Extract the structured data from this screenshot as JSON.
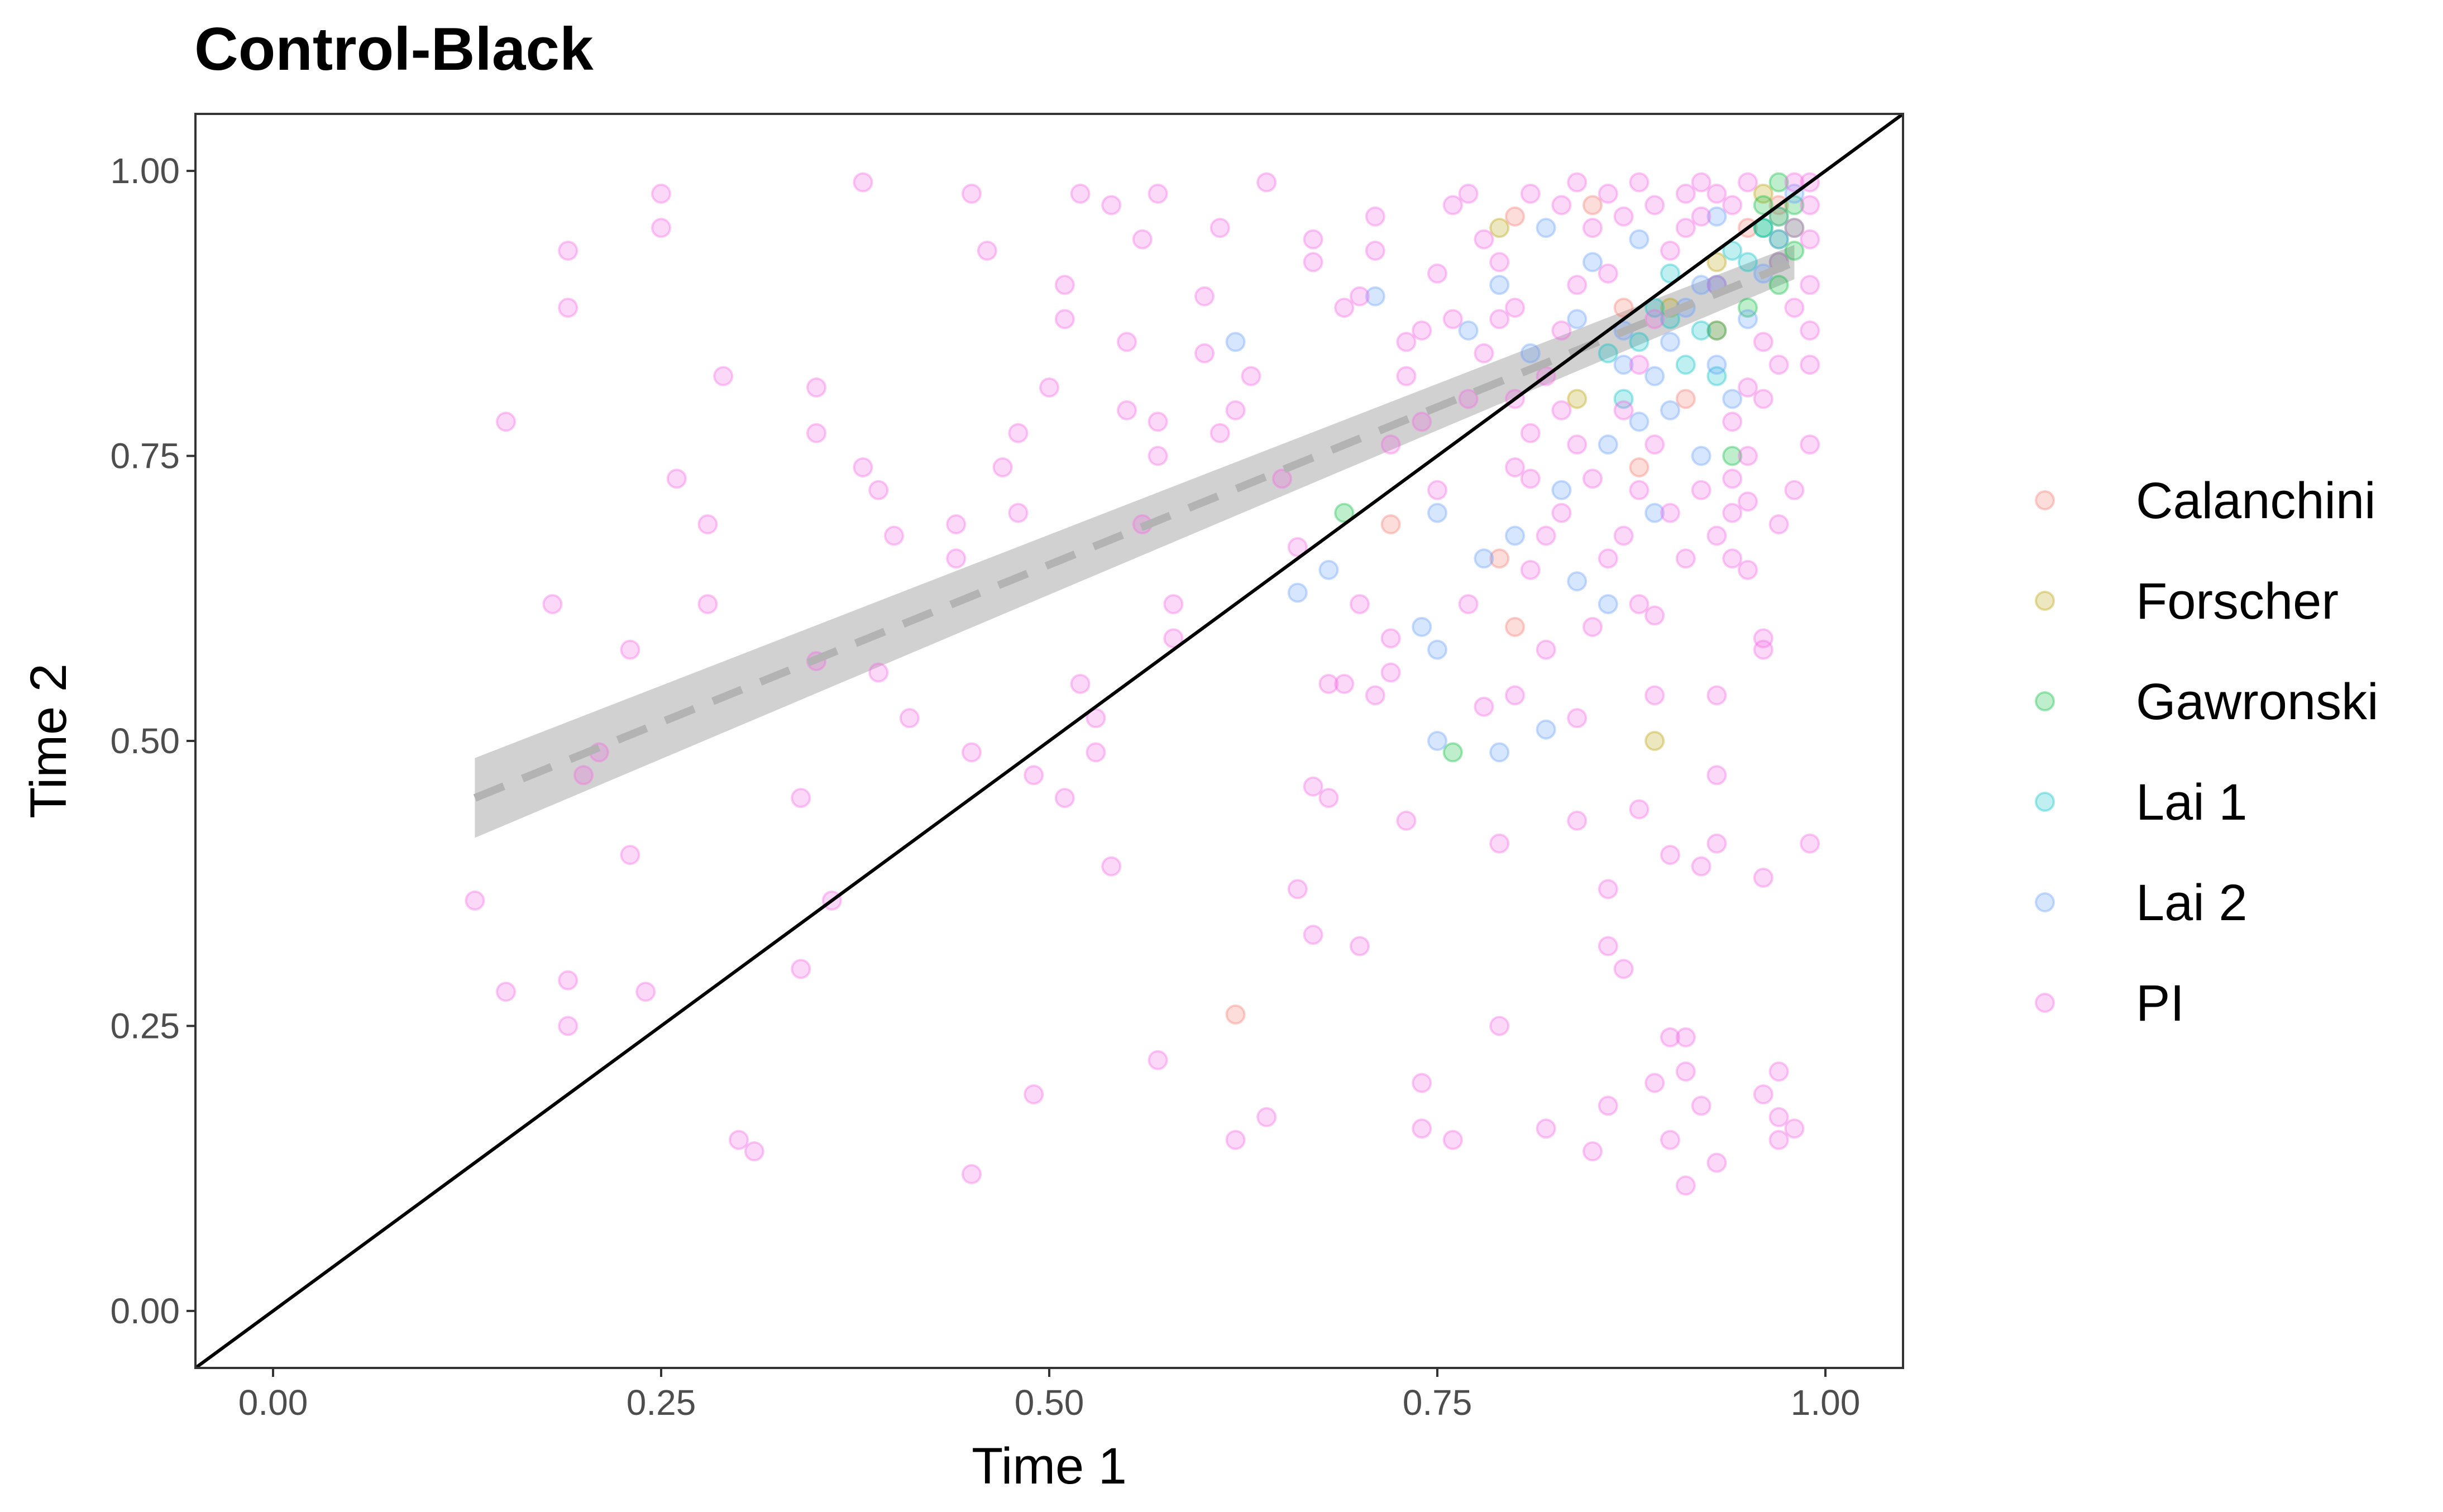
{
  "chart_data": {
    "type": "scatter",
    "title": "Control-Black",
    "xlabel": "Time 1",
    "ylabel": "Time 2",
    "xlim": [
      -0.05,
      1.05
    ],
    "ylim": [
      -0.05,
      1.05
    ],
    "x_ticks": [
      "0.00",
      "0.25",
      "0.50",
      "0.75",
      "1.00"
    ],
    "y_ticks": [
      "0.00",
      "0.25",
      "0.50",
      "0.75",
      "1.00"
    ],
    "x_tick_values": [
      0,
      0.25,
      0.5,
      0.75,
      1.0
    ],
    "y_tick_values": [
      0,
      0.25,
      0.5,
      0.75,
      1.0
    ],
    "grid": false,
    "legend_position": "right",
    "point_alpha": 0.25,
    "reference_line": {
      "type": "identity",
      "color": "#000000"
    },
    "fit_line": {
      "x": [
        0.13,
        0.98
      ],
      "y": [
        0.45,
        0.92
      ],
      "ci_lower": [
        0.415,
        0.905
      ],
      "ci_upper": [
        0.485,
        0.935
      ],
      "style": "dashed",
      "color": "#b3b3b3",
      "band_color": "#bdbdbd"
    },
    "series": [
      {
        "name": "Calanchini",
        "color": "#F8766D",
        "points": [
          [
            0.62,
            0.26
          ],
          [
            0.8,
            0.6
          ],
          [
            0.79,
            0.66
          ],
          [
            0.88,
            0.74
          ],
          [
            0.72,
            0.69
          ],
          [
            0.8,
            0.96
          ],
          [
            0.93,
            0.86
          ],
          [
            0.95,
            0.95
          ],
          [
            0.87,
            0.88
          ],
          [
            0.91,
            0.8
          ],
          [
            0.97,
            0.97
          ],
          [
            0.85,
            0.97
          ]
        ]
      },
      {
        "name": "Forscher",
        "color": "#B79F00",
        "points": [
          [
            0.89,
            0.5
          ],
          [
            0.79,
            0.95
          ],
          [
            0.84,
            0.8
          ],
          [
            0.93,
            0.92
          ],
          [
            0.96,
            0.98
          ],
          [
            0.9,
            0.88
          ],
          [
            0.97,
            0.96
          ]
        ]
      },
      {
        "name": "Gawronski",
        "color": "#00BA38",
        "points": [
          [
            0.69,
            0.7
          ],
          [
            0.76,
            0.49
          ],
          [
            0.94,
            0.75
          ],
          [
            0.96,
            0.95
          ],
          [
            0.97,
            0.92
          ],
          [
            0.98,
            0.97
          ],
          [
            0.95,
            0.88
          ],
          [
            0.97,
            0.99
          ],
          [
            0.98,
            0.93
          ],
          [
            0.96,
            0.97
          ],
          [
            0.97,
            0.9
          ],
          [
            0.98,
            0.95
          ],
          [
            0.93,
            0.86
          ],
          [
            0.97,
            0.94
          ]
        ]
      },
      {
        "name": "Lai 1",
        "color": "#00BFC4",
        "points": [
          [
            0.88,
            0.85
          ],
          [
            0.9,
            0.87
          ],
          [
            0.91,
            0.83
          ],
          [
            0.93,
            0.9
          ],
          [
            0.95,
            0.92
          ],
          [
            0.87,
            0.8
          ],
          [
            0.89,
            0.88
          ],
          [
            0.92,
            0.86
          ],
          [
            0.94,
            0.93
          ],
          [
            0.96,
            0.95
          ],
          [
            0.86,
            0.84
          ],
          [
            0.9,
            0.91
          ],
          [
            0.93,
            0.82
          ],
          [
            0.97,
            0.96
          ]
        ]
      },
      {
        "name": "Lai 2",
        "color": "#619CFF",
        "points": [
          [
            0.62,
            0.85
          ],
          [
            0.66,
            0.63
          ],
          [
            0.68,
            0.65
          ],
          [
            0.74,
            0.6
          ],
          [
            0.75,
            0.58
          ],
          [
            0.75,
            0.5
          ],
          [
            0.79,
            0.49
          ],
          [
            0.82,
            0.51
          ],
          [
            0.78,
            0.66
          ],
          [
            0.8,
            0.68
          ],
          [
            0.84,
            0.64
          ],
          [
            0.86,
            0.62
          ],
          [
            0.88,
            0.78
          ],
          [
            0.89,
            0.82
          ],
          [
            0.9,
            0.85
          ],
          [
            0.87,
            0.86
          ],
          [
            0.91,
            0.88
          ],
          [
            0.92,
            0.9
          ],
          [
            0.85,
            0.92
          ],
          [
            0.88,
            0.94
          ],
          [
            0.93,
            0.83
          ],
          [
            0.94,
            0.8
          ],
          [
            0.9,
            0.79
          ],
          [
            0.86,
            0.76
          ],
          [
            0.83,
            0.72
          ],
          [
            0.81,
            0.84
          ],
          [
            0.77,
            0.86
          ],
          [
            0.79,
            0.9
          ],
          [
            0.84,
            0.87
          ],
          [
            0.87,
            0.83
          ],
          [
            0.95,
            0.87
          ],
          [
            0.96,
            0.91
          ],
          [
            0.97,
            0.94
          ],
          [
            0.89,
            0.7
          ],
          [
            0.92,
            0.75
          ],
          [
            0.93,
            0.96
          ],
          [
            0.75,
            0.7
          ],
          [
            0.71,
            0.89
          ],
          [
            0.82,
            0.95
          ],
          [
            0.98,
            0.98
          ]
        ]
      },
      {
        "name": "PI",
        "color": "#F564E3",
        "points": [
          [
            0.13,
            0.36
          ],
          [
            0.15,
            0.28
          ],
          [
            0.15,
            0.78
          ],
          [
            0.18,
            0.62
          ],
          [
            0.19,
            0.93
          ],
          [
            0.19,
            0.88
          ],
          [
            0.19,
            0.25
          ],
          [
            0.19,
            0.29
          ],
          [
            0.2,
            0.47
          ],
          [
            0.21,
            0.49
          ],
          [
            0.23,
            0.58
          ],
          [
            0.23,
            0.4
          ],
          [
            0.24,
            0.28
          ],
          [
            0.25,
            0.98
          ],
          [
            0.25,
            0.95
          ],
          [
            0.26,
            0.73
          ],
          [
            0.28,
            0.69
          ],
          [
            0.28,
            0.62
          ],
          [
            0.29,
            0.82
          ],
          [
            0.3,
            0.15
          ],
          [
            0.31,
            0.14
          ],
          [
            0.34,
            0.3
          ],
          [
            0.34,
            0.45
          ],
          [
            0.35,
            0.77
          ],
          [
            0.35,
            0.57
          ],
          [
            0.35,
            0.81
          ],
          [
            0.36,
            0.36
          ],
          [
            0.38,
            0.74
          ],
          [
            0.38,
            0.99
          ],
          [
            0.39,
            0.72
          ],
          [
            0.39,
            0.56
          ],
          [
            0.4,
            0.68
          ],
          [
            0.41,
            0.52
          ],
          [
            0.44,
            0.69
          ],
          [
            0.44,
            0.66
          ],
          [
            0.45,
            0.98
          ],
          [
            0.45,
            0.49
          ],
          [
            0.45,
            0.12
          ],
          [
            0.46,
            0.93
          ],
          [
            0.47,
            0.74
          ],
          [
            0.48,
            0.7
          ],
          [
            0.48,
            0.77
          ],
          [
            0.49,
            0.47
          ],
          [
            0.49,
            0.19
          ],
          [
            0.5,
            0.81
          ],
          [
            0.51,
            0.9
          ],
          [
            0.51,
            0.87
          ],
          [
            0.51,
            0.45
          ],
          [
            0.52,
            0.98
          ],
          [
            0.52,
            0.55
          ],
          [
            0.53,
            0.49
          ],
          [
            0.53,
            0.52
          ],
          [
            0.54,
            0.97
          ],
          [
            0.54,
            0.39
          ],
          [
            0.55,
            0.79
          ],
          [
            0.55,
            0.85
          ],
          [
            0.56,
            0.94
          ],
          [
            0.56,
            0.69
          ],
          [
            0.57,
            0.75
          ],
          [
            0.57,
            0.78
          ],
          [
            0.57,
            0.98
          ],
          [
            0.57,
            0.22
          ],
          [
            0.58,
            0.62
          ],
          [
            0.58,
            0.59
          ],
          [
            0.6,
            0.89
          ],
          [
            0.6,
            0.84
          ],
          [
            0.61,
            0.95
          ],
          [
            0.61,
            0.77
          ],
          [
            0.62,
            0.79
          ],
          [
            0.62,
            0.15
          ],
          [
            0.63,
            0.82
          ],
          [
            0.64,
            0.99
          ],
          [
            0.64,
            0.17
          ],
          [
            0.65,
            0.73
          ],
          [
            0.66,
            0.67
          ],
          [
            0.66,
            0.37
          ],
          [
            0.67,
            0.33
          ],
          [
            0.67,
            0.46
          ],
          [
            0.67,
            0.92
          ],
          [
            0.67,
            0.94
          ],
          [
            0.68,
            0.55
          ],
          [
            0.68,
            0.45
          ],
          [
            0.69,
            0.88
          ],
          [
            0.69,
            0.55
          ],
          [
            0.7,
            0.62
          ],
          [
            0.7,
            0.32
          ],
          [
            0.7,
            0.89
          ],
          [
            0.71,
            0.54
          ],
          [
            0.71,
            0.96
          ],
          [
            0.72,
            0.56
          ],
          [
            0.72,
            0.59
          ],
          [
            0.73,
            0.43
          ],
          [
            0.73,
            0.85
          ],
          [
            0.74,
            0.2
          ],
          [
            0.74,
            0.16
          ],
          [
            0.74,
            0.78
          ],
          [
            0.75,
            0.72
          ],
          [
            0.76,
            0.15
          ],
          [
            0.76,
            0.97
          ],
          [
            0.77,
            0.62
          ],
          [
            0.78,
            0.53
          ],
          [
            0.79,
            0.41
          ],
          [
            0.79,
            0.25
          ],
          [
            0.8,
            0.54
          ],
          [
            0.8,
            0.74
          ],
          [
            0.81,
            0.65
          ],
          [
            0.82,
            0.58
          ],
          [
            0.82,
            0.16
          ],
          [
            0.83,
            0.79
          ],
          [
            0.84,
            0.43
          ],
          [
            0.84,
            0.52
          ],
          [
            0.85,
            0.6
          ],
          [
            0.85,
            0.14
          ],
          [
            0.86,
            0.18
          ],
          [
            0.86,
            0.32
          ],
          [
            0.86,
            0.37
          ],
          [
            0.87,
            0.3
          ],
          [
            0.88,
            0.44
          ],
          [
            0.88,
            0.62
          ],
          [
            0.89,
            0.2
          ],
          [
            0.89,
            0.61
          ],
          [
            0.89,
            0.54
          ],
          [
            0.9,
            0.4
          ],
          [
            0.9,
            0.24
          ],
          [
            0.9,
            0.15
          ],
          [
            0.91,
            0.21
          ],
          [
            0.91,
            0.11
          ],
          [
            0.91,
            0.24
          ],
          [
            0.92,
            0.39
          ],
          [
            0.92,
            0.18
          ],
          [
            0.93,
            0.54
          ],
          [
            0.93,
            0.47
          ],
          [
            0.93,
            0.41
          ],
          [
            0.93,
            0.13
          ],
          [
            0.94,
            0.66
          ],
          [
            0.94,
            0.7
          ],
          [
            0.95,
            0.65
          ],
          [
            0.95,
            0.71
          ],
          [
            0.96,
            0.38
          ],
          [
            0.96,
            0.58
          ],
          [
            0.96,
            0.19
          ],
          [
            0.96,
            0.59
          ],
          [
            0.97,
            0.17
          ],
          [
            0.97,
            0.21
          ],
          [
            0.97,
            0.15
          ],
          [
            0.97,
            0.69
          ],
          [
            0.98,
            0.16
          ],
          [
            0.98,
            0.72
          ],
          [
            0.99,
            0.41
          ],
          [
            0.99,
            0.76
          ],
          [
            0.99,
            0.83
          ],
          [
            0.99,
            0.99
          ],
          [
            0.98,
            0.95
          ],
          [
            0.97,
            0.92
          ],
          [
            0.96,
            0.85
          ],
          [
            0.95,
            0.81
          ],
          [
            0.94,
            0.78
          ],
          [
            0.93,
            0.9
          ],
          [
            0.92,
            0.96
          ],
          [
            0.91,
            0.98
          ],
          [
            0.9,
            0.93
          ],
          [
            0.89,
            0.87
          ],
          [
            0.88,
            0.83
          ],
          [
            0.87,
            0.79
          ],
          [
            0.86,
            0.91
          ],
          [
            0.85,
            0.95
          ],
          [
            0.84,
            0.9
          ],
          [
            0.83,
            0.86
          ],
          [
            0.82,
            0.82
          ],
          [
            0.81,
            0.77
          ],
          [
            0.8,
            0.88
          ],
          [
            0.79,
            0.92
          ],
          [
            0.78,
            0.84
          ],
          [
            0.77,
            0.8
          ],
          [
            0.76,
            0.87
          ],
          [
            0.75,
            0.91
          ],
          [
            0.74,
            0.86
          ],
          [
            0.73,
            0.82
          ],
          [
            0.72,
            0.76
          ],
          [
            0.71,
            0.93
          ],
          [
            0.86,
            0.98
          ],
          [
            0.88,
            0.99
          ],
          [
            0.92,
            0.99
          ],
          [
            0.94,
            0.97
          ],
          [
            0.95,
            0.99
          ],
          [
            0.98,
            0.99
          ],
          [
            0.99,
            0.97
          ],
          [
            0.99,
            0.94
          ],
          [
            0.99,
            0.9
          ],
          [
            0.99,
            0.86
          ],
          [
            0.98,
            0.88
          ],
          [
            0.97,
            0.83
          ],
          [
            0.96,
            0.8
          ],
          [
            0.95,
            0.75
          ],
          [
            0.94,
            0.73
          ],
          [
            0.93,
            0.68
          ],
          [
            0.92,
            0.72
          ],
          [
            0.91,
            0.66
          ],
          [
            0.9,
            0.7
          ],
          [
            0.89,
            0.76
          ],
          [
            0.88,
            0.72
          ],
          [
            0.87,
            0.68
          ],
          [
            0.86,
            0.66
          ],
          [
            0.85,
            0.73
          ],
          [
            0.84,
            0.76
          ],
          [
            0.83,
            0.7
          ],
          [
            0.82,
            0.68
          ],
          [
            0.81,
            0.73
          ],
          [
            0.8,
            0.8
          ],
          [
            0.79,
            0.87
          ],
          [
            0.78,
            0.94
          ],
          [
            0.77,
            0.98
          ],
          [
            0.81,
            0.98
          ],
          [
            0.83,
            0.97
          ],
          [
            0.84,
            0.99
          ],
          [
            0.87,
            0.96
          ],
          [
            0.89,
            0.97
          ],
          [
            0.91,
            0.95
          ],
          [
            0.93,
            0.98
          ]
        ]
      }
    ]
  }
}
